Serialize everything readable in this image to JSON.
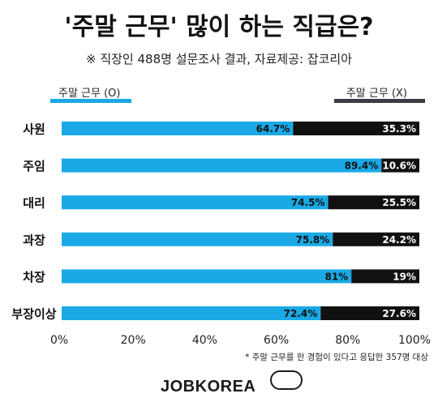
{
  "title": "'주말 근무' 많이 하는 직급은?",
  "subtitle": "※ 직장인 488명 설문조사 결과, 자료제공: 잡코리아",
  "legend": {
    "left_label": "주말 근무 (O)",
    "right_label": "주말 근무 (X)"
  },
  "colors": {
    "yes": "#1aa9e6",
    "no": "#111111",
    "legend_no": "#3a3d45"
  },
  "footnote": "* 주말 근무를 한 경험이 있다고 응답한 357명 대상",
  "logo": "JOBKOREA",
  "chart_data": {
    "type": "bar",
    "orientation": "horizontal",
    "stacked": true,
    "categories": [
      "사원",
      "주임",
      "대리",
      "과장",
      "차장",
      "부장이상"
    ],
    "series": [
      {
        "name": "주말 근무 (O)",
        "values": [
          64.7,
          89.4,
          74.5,
          75.8,
          81,
          72.4
        ],
        "labels": [
          "64.7%",
          "89.4%",
          "74.5%",
          "75.8%",
          "81%",
          "72.4%"
        ]
      },
      {
        "name": "주말 근무 (X)",
        "values": [
          35.3,
          10.6,
          25.5,
          24.2,
          19,
          27.6
        ],
        "labels": [
          "35.3%",
          "10.6%",
          "25.5%",
          "24.2%",
          "19%",
          "27.6%"
        ]
      }
    ],
    "x_ticks": [
      "0%",
      "20%",
      "40%",
      "60%",
      "80%",
      "100%"
    ],
    "xlim": [
      0,
      100
    ],
    "grid": false,
    "legend_position": "top"
  }
}
